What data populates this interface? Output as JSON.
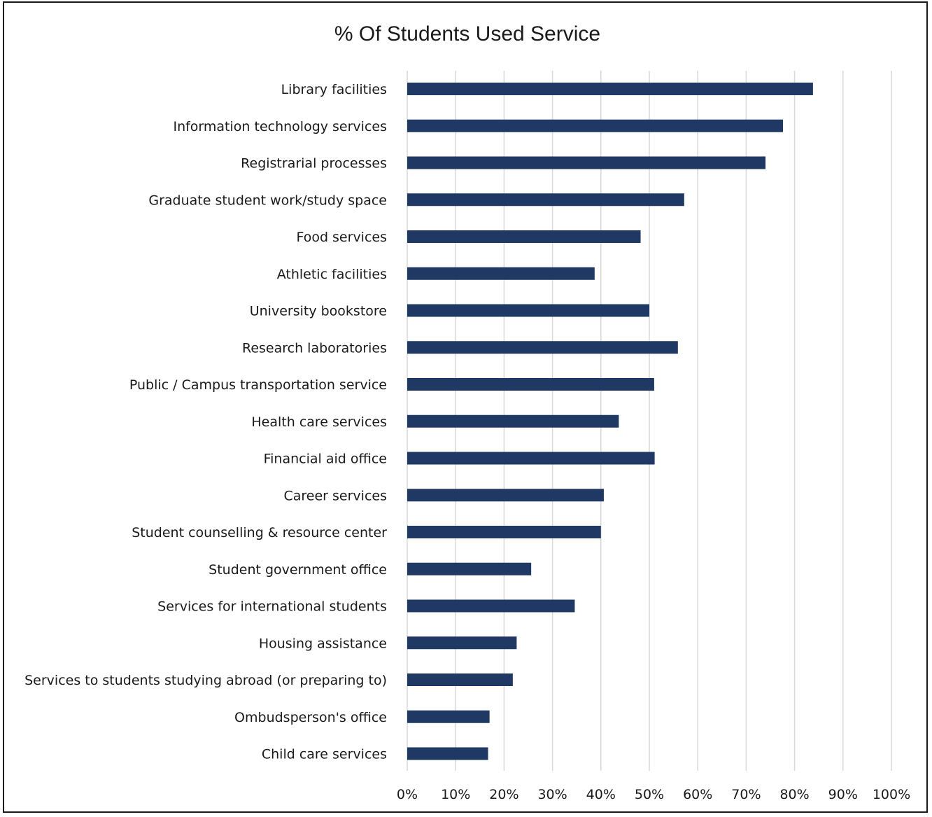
{
  "chart_data": {
    "type": "bar",
    "orientation": "horizontal",
    "title": "% Of Students Used Service",
    "xlabel": "",
    "ylabel": "",
    "xlim": [
      0,
      100
    ],
    "x_ticks": [
      "0%",
      "10%",
      "20%",
      "30%",
      "40%",
      "50%",
      "60%",
      "70%",
      "80%",
      "90%",
      "100%"
    ],
    "grid": "vertical",
    "legend": "none",
    "bar_color": "#1f3864",
    "categories": [
      "Library facilities",
      "Information technology services",
      "Registrarial processes",
      "Graduate student work/study space",
      "Food services",
      "Athletic facilities",
      "University bookstore",
      "Research laboratories",
      "Public / Campus transportation service",
      "Health care services",
      "Financial aid office",
      "Career services",
      "Student counselling & resource center",
      "Student government office",
      "Services for international students",
      "Housing assistance",
      "Services to students studying abroad (or preparing to)",
      "Ombudsperson's office",
      "Child care services"
    ],
    "values": [
      83.8,
      77.6,
      74.0,
      57.2,
      48.2,
      38.7,
      50.0,
      55.9,
      51.0,
      43.7,
      51.1,
      40.6,
      40.0,
      25.6,
      34.6,
      22.6,
      21.8,
      17.0,
      16.7
    ]
  }
}
